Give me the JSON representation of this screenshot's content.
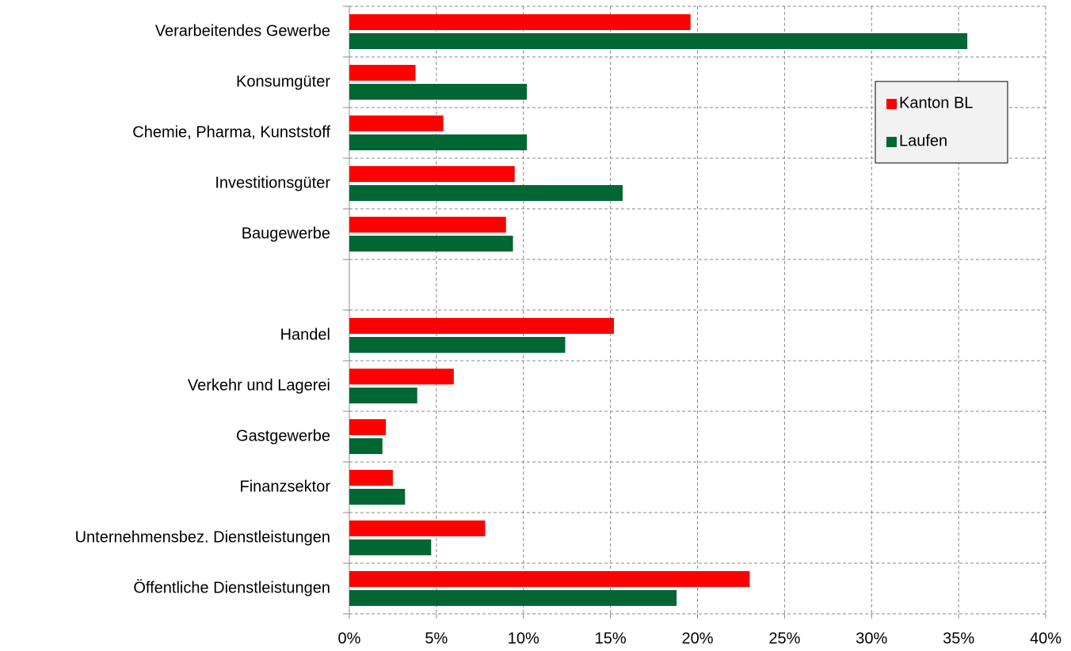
{
  "chart_data": {
    "type": "barh",
    "categories": [
      "Verarbeitendes Gewerbe",
      "Konsumgüter",
      "Chemie, Pharma, Kunststoff",
      "Investitionsgüter",
      "Baugewerbe",
      null,
      "Handel",
      "Verkehr und Lagerei",
      "Gastgewerbe",
      "Finanzsektor",
      "Unternehmensbez. Dienstleistungen",
      "Öffentliche Dienstleistungen"
    ],
    "series": [
      {
        "name": "Kanton BL",
        "color": "#ff0000",
        "values": [
          19.6,
          3.8,
          5.4,
          9.5,
          9.0,
          null,
          15.2,
          6.0,
          2.1,
          2.5,
          7.8,
          23.0
        ]
      },
      {
        "name": "Laufen",
        "color": "#006633",
        "values": [
          35.5,
          10.2,
          10.2,
          15.7,
          9.4,
          null,
          12.4,
          3.9,
          1.9,
          3.2,
          4.7,
          18.8
        ]
      }
    ],
    "xlim": [
      0,
      40
    ],
    "xticks": [
      {
        "value": 0,
        "label": "0%"
      },
      {
        "value": 5,
        "label": "5%"
      },
      {
        "value": 10,
        "label": "10%"
      },
      {
        "value": 15,
        "label": "15%"
      },
      {
        "value": 20,
        "label": "20%"
      },
      {
        "value": 25,
        "label": "25%"
      },
      {
        "value": 30,
        "label": "30%"
      },
      {
        "value": 35,
        "label": "35%"
      },
      {
        "value": 40,
        "label": "40%"
      }
    ],
    "grid": true,
    "legend": "upper right"
  }
}
